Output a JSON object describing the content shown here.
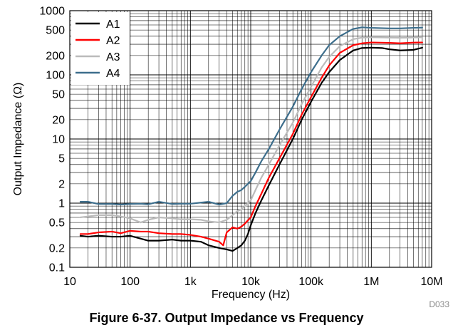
{
  "figure": {
    "caption": "Figure 6-37. Output Impedance vs Frequency",
    "code": "D033"
  },
  "chart_data": {
    "type": "line",
    "title": "",
    "xlabel": "Frequency (Hz)",
    "ylabel": "Output Impedance (Ω)",
    "xscale": "log",
    "yscale": "log",
    "xlim": [
      10,
      10000000
    ],
    "ylim": [
      0.1,
      1000
    ],
    "x_ticks": [
      {
        "value": 10,
        "label": "10"
      },
      {
        "value": 100,
        "label": "100"
      },
      {
        "value": 1000,
        "label": "1k"
      },
      {
        "value": 10000,
        "label": "10k"
      },
      {
        "value": 100000,
        "label": "100k"
      },
      {
        "value": 1000000,
        "label": "1M"
      },
      {
        "value": 10000000,
        "label": "10M"
      }
    ],
    "y_ticks": [
      {
        "value": 0.1,
        "label": "0.1"
      },
      {
        "value": 0.2,
        "label": "0.2"
      },
      {
        "value": 0.5,
        "label": "0.5"
      },
      {
        "value": 1,
        "label": "1"
      },
      {
        "value": 2,
        "label": "2"
      },
      {
        "value": 5,
        "label": "5"
      },
      {
        "value": 10,
        "label": "10"
      },
      {
        "value": 20,
        "label": "20"
      },
      {
        "value": 50,
        "label": "50"
      },
      {
        "value": 100,
        "label": "100"
      },
      {
        "value": 200,
        "label": "200"
      },
      {
        "value": 500,
        "label": "500"
      },
      {
        "value": 1000,
        "label": "1000"
      }
    ],
    "grid": true,
    "legend": "top-left",
    "series": [
      {
        "name": "A1",
        "color": "#000000",
        "points": [
          [
            15,
            0.31
          ],
          [
            20,
            0.3
          ],
          [
            30,
            0.31
          ],
          [
            50,
            0.3
          ],
          [
            70,
            0.3
          ],
          [
            100,
            0.31
          ],
          [
            150,
            0.28
          ],
          [
            200,
            0.26
          ],
          [
            300,
            0.26
          ],
          [
            500,
            0.27
          ],
          [
            700,
            0.26
          ],
          [
            1000,
            0.26
          ],
          [
            1500,
            0.25
          ],
          [
            2000,
            0.22
          ],
          [
            3000,
            0.2
          ],
          [
            4000,
            0.19
          ],
          [
            5000,
            0.18
          ],
          [
            6000,
            0.2
          ],
          [
            7000,
            0.22
          ],
          [
            8000,
            0.26
          ],
          [
            9000,
            0.33
          ],
          [
            10000,
            0.45
          ],
          [
            12000,
            0.7
          ],
          [
            15000,
            1.1
          ],
          [
            20000,
            1.9
          ],
          [
            30000,
            4
          ],
          [
            50000,
            10
          ],
          [
            70000,
            20
          ],
          [
            100000,
            38
          ],
          [
            150000,
            75
          ],
          [
            200000,
            110
          ],
          [
            300000,
            170
          ],
          [
            500000,
            240
          ],
          [
            700000,
            262
          ],
          [
            1000000,
            265
          ],
          [
            1500000,
            262
          ],
          [
            2000000,
            250
          ],
          [
            3000000,
            240
          ],
          [
            5000000,
            245
          ],
          [
            7000000,
            265
          ]
        ]
      },
      {
        "name": "A2",
        "color": "#ff0000",
        "points": [
          [
            15,
            0.33
          ],
          [
            20,
            0.33
          ],
          [
            30,
            0.35
          ],
          [
            50,
            0.36
          ],
          [
            70,
            0.34
          ],
          [
            100,
            0.37
          ],
          [
            150,
            0.36
          ],
          [
            200,
            0.36
          ],
          [
            300,
            0.34
          ],
          [
            500,
            0.33
          ],
          [
            700,
            0.33
          ],
          [
            1000,
            0.32
          ],
          [
            1500,
            0.3
          ],
          [
            2000,
            0.28
          ],
          [
            3000,
            0.25
          ],
          [
            3500,
            0.22
          ],
          [
            4000,
            0.35
          ],
          [
            5000,
            0.42
          ],
          [
            6000,
            0.4
          ],
          [
            7000,
            0.43
          ],
          [
            8000,
            0.48
          ],
          [
            10000,
            0.6
          ],
          [
            12000,
            0.9
          ],
          [
            15000,
            1.4
          ],
          [
            20000,
            2.5
          ],
          [
            30000,
            5
          ],
          [
            50000,
            12
          ],
          [
            70000,
            24
          ],
          [
            100000,
            45
          ],
          [
            150000,
            90
          ],
          [
            200000,
            140
          ],
          [
            300000,
            220
          ],
          [
            500000,
            290
          ],
          [
            700000,
            310
          ],
          [
            1000000,
            320
          ],
          [
            2000000,
            315
          ],
          [
            3000000,
            310
          ],
          [
            5000000,
            318
          ],
          [
            7000000,
            320
          ]
        ]
      },
      {
        "name": "A3",
        "color": "#bbbbbb",
        "points": [
          [
            15,
            0.6
          ],
          [
            20,
            0.62
          ],
          [
            30,
            0.65
          ],
          [
            50,
            0.65
          ],
          [
            70,
            0.62
          ],
          [
            100,
            0.58
          ],
          [
            150,
            0.5
          ],
          [
            200,
            0.55
          ],
          [
            300,
            0.6
          ],
          [
            500,
            0.58
          ],
          [
            700,
            0.56
          ],
          [
            1000,
            0.56
          ],
          [
            1500,
            0.55
          ],
          [
            2000,
            0.52
          ],
          [
            3000,
            0.5
          ],
          [
            4000,
            0.55
          ],
          [
            5000,
            0.65
          ],
          [
            6000,
            0.75
          ],
          [
            7000,
            0.8
          ],
          [
            8000,
            0.9
          ],
          [
            10000,
            1.1
          ],
          [
            12000,
            1.6
          ],
          [
            15000,
            2.5
          ],
          [
            20000,
            4
          ],
          [
            30000,
            8
          ],
          [
            50000,
            18
          ],
          [
            70000,
            35
          ],
          [
            100000,
            65
          ],
          [
            150000,
            130
          ],
          [
            200000,
            190
          ],
          [
            300000,
            280
          ],
          [
            500000,
            360
          ],
          [
            700000,
            380
          ],
          [
            1000000,
            385
          ],
          [
            2000000,
            380
          ],
          [
            3000000,
            378
          ],
          [
            5000000,
            382
          ],
          [
            7000000,
            385
          ]
        ]
      },
      {
        "name": "A4",
        "color": "#3d6e8c",
        "points": [
          [
            15,
            1.05
          ],
          [
            20,
            1.05
          ],
          [
            30,
            0.97
          ],
          [
            50,
            0.97
          ],
          [
            70,
            0.95
          ],
          [
            100,
            0.97
          ],
          [
            150,
            0.98
          ],
          [
            200,
            0.96
          ],
          [
            300,
            1.05
          ],
          [
            500,
            0.97
          ],
          [
            700,
            0.98
          ],
          [
            1000,
            0.98
          ],
          [
            1500,
            1.02
          ],
          [
            2000,
            1.05
          ],
          [
            3000,
            0.95
          ],
          [
            4000,
            1.0
          ],
          [
            5000,
            1.3
          ],
          [
            6000,
            1.5
          ],
          [
            7000,
            1.6
          ],
          [
            8000,
            1.8
          ],
          [
            10000,
            2.2
          ],
          [
            12000,
            3
          ],
          [
            15000,
            4.5
          ],
          [
            20000,
            7
          ],
          [
            30000,
            14
          ],
          [
            50000,
            32
          ],
          [
            70000,
            60
          ],
          [
            100000,
            110
          ],
          [
            150000,
            200
          ],
          [
            200000,
            290
          ],
          [
            300000,
            400
          ],
          [
            500000,
            520
          ],
          [
            700000,
            550
          ],
          [
            1000000,
            540
          ],
          [
            2000000,
            530
          ],
          [
            3000000,
            530
          ],
          [
            5000000,
            540
          ],
          [
            7000000,
            545
          ]
        ]
      }
    ]
  }
}
